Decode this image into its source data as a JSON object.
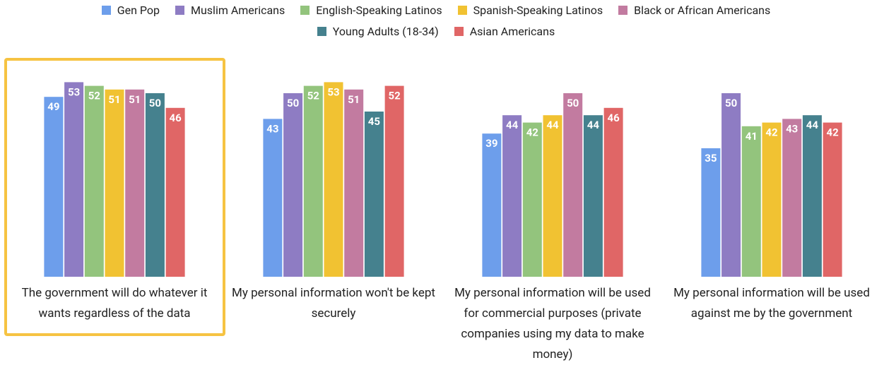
{
  "chart_data": {
    "type": "bar",
    "categories": [
      "The government will do whatever it wants regardless of the data",
      "My personal information won't be kept securely",
      "My personal information will be used for commercial purposes (private companies using my data to make money)",
      "My personal information will be used against me by the government"
    ],
    "series": [
      {
        "name": "Gen Pop",
        "color": "#6d9eeb",
        "values": [
          49,
          43,
          39,
          35
        ]
      },
      {
        "name": "Muslim Americans",
        "color": "#8e7cc3",
        "values": [
          53,
          50,
          44,
          50
        ]
      },
      {
        "name": "English-Speaking Latinos",
        "color": "#93c47d",
        "values": [
          52,
          52,
          42,
          41
        ]
      },
      {
        "name": "Spanish-Speaking Latinos",
        "color": "#f1c232",
        "values": [
          51,
          53,
          44,
          42
        ]
      },
      {
        "name": "Black or African Americans",
        "color": "#c27ba0",
        "values": [
          51,
          51,
          50,
          43
        ]
      },
      {
        "name": "Young Adults (18-34)",
        "color": "#45818e",
        "values": [
          50,
          45,
          44,
          44
        ]
      },
      {
        "name": "Asian Americans",
        "color": "#e06666",
        "values": [
          46,
          52,
          46,
          42
        ]
      }
    ],
    "ylim": [
      0,
      55
    ],
    "legend": "top"
  }
}
